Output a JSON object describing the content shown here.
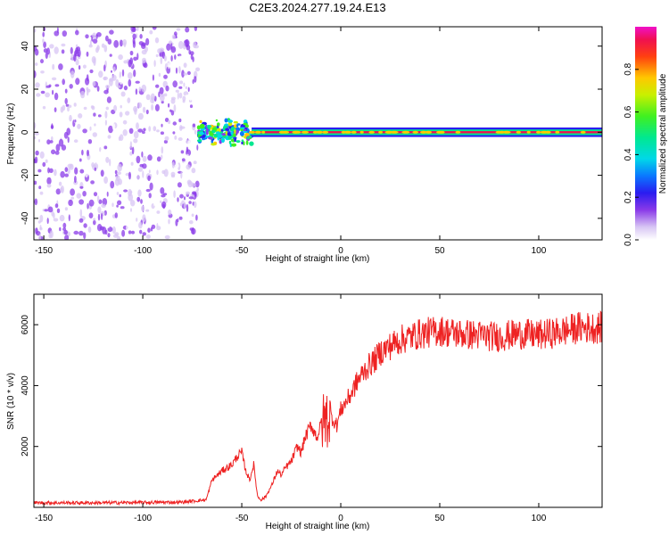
{
  "title": "C2E3.2024.277.19.24.E13",
  "colors": {
    "snr_line": "#ee2222",
    "spectrogram_background": "#ffffff",
    "noise": "#6a2ccc"
  },
  "chart_data": [
    {
      "type": "heatmap",
      "title": "C2E3.2024.277.19.24.E13",
      "xlabel": "Height of straight line (km)",
      "ylabel": "Frequency (Hz)",
      "xlim": [
        -155,
        132
      ],
      "ylim": [
        -50,
        49
      ],
      "xticks": [
        -150,
        -100,
        -50,
        0,
        50,
        100
      ],
      "yticks": [
        -40,
        -20,
        0,
        20,
        40
      ],
      "grid": false,
      "colorbar": {
        "label": "Normalized spectral amplitude",
        "range": [
          0,
          1
        ],
        "ticks": [
          0.0,
          0.2,
          0.4,
          0.6,
          0.8
        ],
        "colormap": "rainbow (white-violet-blue-cyan-green-yellow-red-magenta)"
      },
      "regions": [
        {
          "x_range": [
            -155,
            -72
          ],
          "frequency_range": [
            -50,
            49
          ],
          "amplitude": 0.1,
          "pattern": "broadband noise"
        },
        {
          "x_range": [
            -72,
            -45
          ],
          "frequency_center": 0,
          "frequency_halfwidth": 6,
          "amplitude": 0.4,
          "pattern": "scattered signal"
        },
        {
          "x_range": [
            -45,
            132
          ],
          "frequency_center": 0,
          "frequency_halfwidth": 1,
          "amplitude": 0.95,
          "pattern": "narrow tone"
        }
      ]
    },
    {
      "type": "line",
      "xlabel": "Height of straight line (km)",
      "ylabel": "SNR (10 * v/v)",
      "xlim": [
        -155,
        132
      ],
      "ylim": [
        0,
        7000
      ],
      "xticks": [
        -150,
        -100,
        -50,
        0,
        50,
        100
      ],
      "yticks": [
        2000,
        4000,
        6000
      ],
      "grid": false,
      "series": [
        {
          "x": [
            -155,
            -140,
            -120,
            -100,
            -80,
            -68,
            -65,
            -60,
            -55,
            -52,
            -50,
            -48,
            -46,
            -44,
            -42,
            -40,
            -38,
            -35,
            -32,
            -30,
            -28,
            -25,
            -22,
            -20,
            -18,
            -15,
            -12,
            -10,
            -8,
            -5,
            -2,
            0,
            2,
            5,
            8,
            10,
            12,
            15,
            18,
            20,
            25,
            30,
            35,
            40,
            45,
            50,
            60,
            70,
            80,
            90,
            100,
            110,
            120,
            132
          ],
          "y": [
            150,
            150,
            150,
            160,
            170,
            250,
            900,
            1200,
            1400,
            1700,
            1800,
            1200,
            900,
            1400,
            350,
            250,
            350,
            700,
            1200,
            1050,
            1300,
            1500,
            2000,
            1800,
            2300,
            2700,
            2300,
            2700,
            2900,
            3000,
            2700,
            3200,
            3400,
            3700,
            4100,
            4300,
            4500,
            4700,
            4900,
            5100,
            5300,
            5500,
            5600,
            5700,
            5750,
            5800,
            5700,
            5650,
            5600,
            5700,
            5650,
            5750,
            5900,
            5900
          ]
        }
      ]
    }
  ]
}
